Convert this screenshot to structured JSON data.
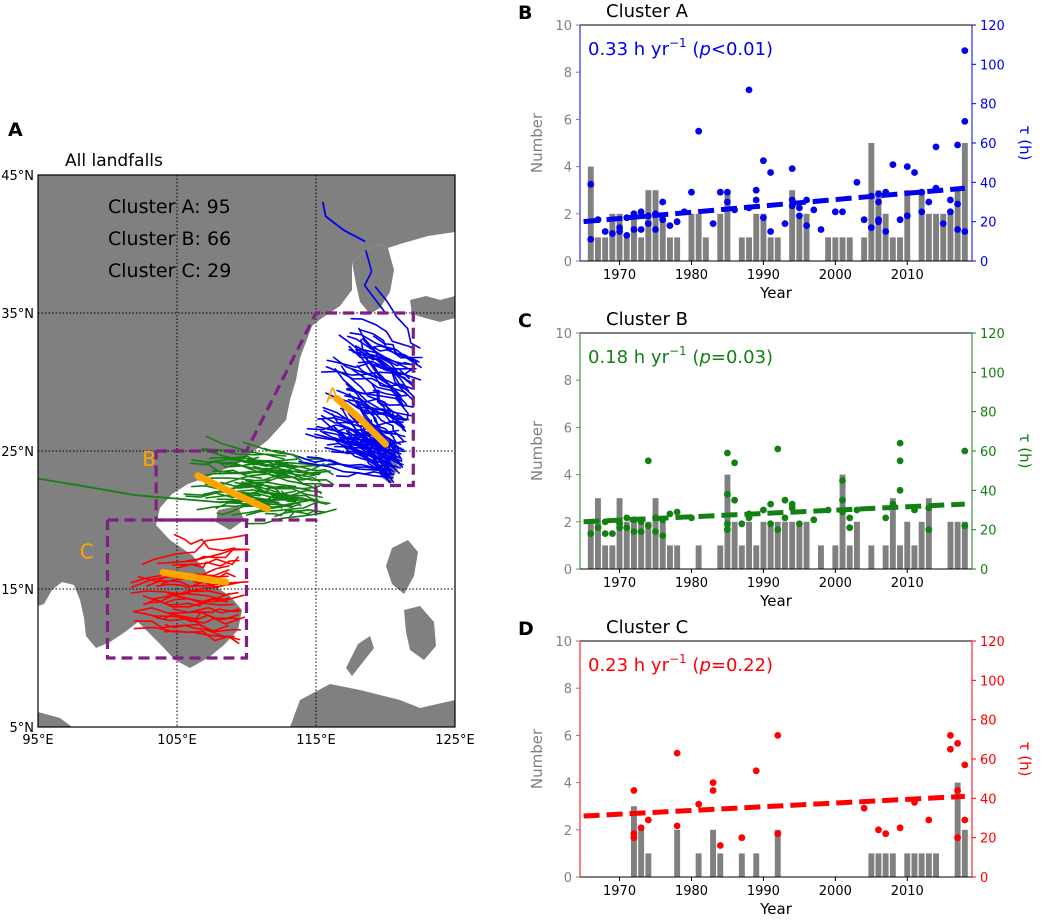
{
  "colors": {
    "cluster_a": "#0000ee",
    "cluster_b": "#138013",
    "cluster_c": "#ff0000",
    "bars": "#808080",
    "land": "#808080",
    "box": "#7f1f7f",
    "segment": "#ffa500",
    "left_axis": "#808080"
  },
  "chart_data": [
    {
      "type": "map",
      "panel": "A",
      "title": "All landfalls",
      "legend": [
        {
          "label": "Cluster A: 95",
          "color_key": "cluster_a"
        },
        {
          "label": "Cluster B: 66",
          "color_key": "cluster_b"
        },
        {
          "label": "Cluster C: 29",
          "color_key": "cluster_c"
        }
      ],
      "lon_range": [
        95,
        125
      ],
      "lat_range": [
        5,
        45
      ],
      "lon_ticks": [
        {
          "value": 95,
          "label": "95°E"
        },
        {
          "value": 105,
          "label": "105°E"
        },
        {
          "value": 115,
          "label": "115°E"
        },
        {
          "value": 125,
          "label": "125°E"
        }
      ],
      "lat_ticks": [
        {
          "value": 5,
          "label": "5°N"
        },
        {
          "value": 15,
          "label": "15°N"
        },
        {
          "value": 25,
          "label": "25°N"
        },
        {
          "value": 35,
          "label": "35°N"
        },
        {
          "value": 45,
          "label": "45°N"
        }
      ],
      "grid_lon": [
        105,
        115
      ],
      "grid_lat": [
        15,
        25,
        35
      ],
      "regions": [
        {
          "name": "A",
          "lonlat": [
            [
              103.5,
              25
            ],
            [
              110,
              25
            ],
            [
              115,
              35
            ],
            [
              122,
              35
            ],
            [
              122,
              22.5
            ],
            [
              115,
              22.5
            ],
            [
              115,
              20
            ],
            [
              103.5,
              20
            ],
            [
              103.5,
              25
            ]
          ]
        },
        {
          "name": "C",
          "lonlat": [
            [
              100,
              20
            ],
            [
              110,
              20
            ],
            [
              110,
              10
            ],
            [
              100,
              10
            ],
            [
              100,
              20
            ]
          ]
        }
      ],
      "mean_segments": [
        {
          "label": "A",
          "lonlat": [
            [
              116.5,
              28.8
            ],
            [
              118.2,
              27.3
            ],
            [
              120,
              25.5
            ]
          ],
          "label_at": [
            115.7,
            28.5
          ]
        },
        {
          "label": "B",
          "lonlat": [
            [
              106.5,
              23.2
            ],
            [
              108.5,
              22.2
            ],
            [
              111.5,
              20.8
            ]
          ],
          "label_at": [
            102.5,
            23.9
          ]
        },
        {
          "label": "C",
          "lonlat": [
            [
              104,
              16.2
            ],
            [
              106.5,
              15.8
            ],
            [
              108.5,
              15.5
            ]
          ],
          "label_at": [
            98,
            17.2
          ]
        }
      ]
    },
    {
      "type": "bar+scatter",
      "panel": "B",
      "title": "Cluster A",
      "trend_text": "0.33 h yr",
      "trend_sup": "−1",
      "p_label": "p",
      "p_text": "<0.01)",
      "color_key": "cluster_a",
      "xlabel": "Year",
      "ylabel_left": "Number",
      "ylabel_right": "τ (h)",
      "xlim": [
        1964.5,
        2019
      ],
      "x_ticks": [
        1970,
        1980,
        1990,
        2000,
        2010
      ],
      "ylim_left": [
        0,
        10
      ],
      "y_ticks_left": [
        0,
        2,
        4,
        6,
        8,
        10
      ],
      "ylim_right": [
        0,
        120
      ],
      "y_ticks_right": [
        0,
        20,
        40,
        60,
        80,
        100,
        120
      ],
      "bars": {
        "years": [
          1966,
          1967,
          1968,
          1969,
          1970,
          1971,
          1972,
          1973,
          1974,
          1975,
          1976,
          1977,
          1978,
          1980,
          1981,
          1982,
          1984,
          1985,
          1987,
          1988,
          1989,
          1990,
          1991,
          1992,
          1994,
          1995,
          1996,
          1999,
          2000,
          2001,
          2002,
          2004,
          2005,
          2006,
          2007,
          2008,
          2009,
          2010,
          2012,
          2013,
          2014,
          2015,
          2016,
          2017,
          2018
        ],
        "values": [
          4,
          1,
          1,
          2,
          2,
          1,
          2,
          1,
          3,
          3,
          2,
          1,
          1,
          2,
          2,
          1,
          2,
          3,
          1,
          1,
          2,
          2,
          1,
          1,
          3,
          2,
          2,
          1,
          1,
          1,
          1,
          1,
          5,
          3,
          2,
          1,
          1,
          3,
          3,
          2,
          2,
          2,
          2,
          3,
          5
        ]
      },
      "trend": {
        "x": [
          1965,
          2018
        ],
        "y": [
          20,
          37
        ]
      },
      "points": [
        [
          1966,
          39
        ],
        [
          1966,
          11
        ],
        [
          1967,
          21
        ],
        [
          1968,
          15
        ],
        [
          1969,
          14
        ],
        [
          1970,
          17
        ],
        [
          1970,
          15
        ],
        [
          1971,
          13
        ],
        [
          1971,
          22
        ],
        [
          1972,
          16
        ],
        [
          1972,
          24
        ],
        [
          1973,
          16
        ],
        [
          1973,
          25
        ],
        [
          1974,
          19
        ],
        [
          1974,
          23
        ],
        [
          1975,
          24
        ],
        [
          1975,
          16
        ],
        [
          1976,
          21
        ],
        [
          1976,
          30
        ],
        [
          1977,
          18
        ],
        [
          1978,
          20
        ],
        [
          1979,
          25
        ],
        [
          1980,
          35
        ],
        [
          1981,
          66
        ],
        [
          1983,
          19
        ],
        [
          1984,
          35
        ],
        [
          1985,
          35
        ],
        [
          1985,
          30
        ],
        [
          1986,
          26
        ],
        [
          1988,
          27
        ],
        [
          1988,
          87
        ],
        [
          1989,
          31
        ],
        [
          1989,
          36
        ],
        [
          1990,
          22
        ],
        [
          1990,
          51
        ],
        [
          1991,
          45
        ],
        [
          1991,
          15
        ],
        [
          1993,
          19
        ],
        [
          1994,
          28
        ],
        [
          1994,
          31
        ],
        [
          1994,
          47
        ],
        [
          1995,
          23
        ],
        [
          1995,
          27
        ],
        [
          1996,
          31
        ],
        [
          1996,
          18
        ],
        [
          1997,
          26
        ],
        [
          1998,
          16
        ],
        [
          2000,
          25
        ],
        [
          2001,
          25
        ],
        [
          2003,
          40
        ],
        [
          2004,
          21
        ],
        [
          2005,
          33
        ],
        [
          2005,
          17
        ],
        [
          2006,
          34
        ],
        [
          2006,
          30
        ],
        [
          2006,
          21
        ],
        [
          2006,
          20
        ],
        [
          2007,
          35
        ],
        [
          2007,
          15
        ],
        [
          2008,
          49
        ],
        [
          2009,
          21
        ],
        [
          2010,
          48
        ],
        [
          2010,
          23
        ],
        [
          2011,
          45
        ],
        [
          2012,
          35
        ],
        [
          2012,
          25
        ],
        [
          2013,
          30
        ],
        [
          2014,
          58
        ],
        [
          2014,
          37
        ],
        [
          2015,
          19
        ],
        [
          2016,
          25
        ],
        [
          2016,
          31
        ],
        [
          2017,
          59
        ],
        [
          2017,
          16
        ],
        [
          2017,
          29
        ],
        [
          2018,
          107
        ],
        [
          2018,
          71
        ],
        [
          2018,
          15
        ]
      ]
    },
    {
      "type": "bar+scatter",
      "panel": "C",
      "title": "Cluster B",
      "trend_text": "0.18 h yr",
      "trend_sup": "−1",
      "p_label": "p",
      "p_text": "=0.03)",
      "color_key": "cluster_b",
      "xlabel": "Year",
      "ylabel_left": "Number",
      "ylabel_right": "τ (h)",
      "xlim": [
        1964.5,
        2019
      ],
      "x_ticks": [
        1970,
        1980,
        1990,
        2000,
        2010
      ],
      "ylim_left": [
        0,
        10
      ],
      "y_ticks_left": [
        0,
        2,
        4,
        6,
        8,
        10
      ],
      "ylim_right": [
        0,
        120
      ],
      "y_ticks_right": [
        0,
        20,
        40,
        60,
        80,
        100,
        120
      ],
      "bars": {
        "years": [
          1966,
          1967,
          1968,
          1969,
          1970,
          1971,
          1972,
          1973,
          1974,
          1975,
          1976,
          1977,
          1978,
          1981,
          1984,
          1985,
          1986,
          1987,
          1988,
          1989,
          1990,
          1991,
          1992,
          1993,
          1994,
          1995,
          1996,
          1998,
          2000,
          2001,
          2002,
          2003,
          2005,
          2007,
          2008,
          2009,
          2010,
          2011,
          2012,
          2013,
          2016,
          2017,
          2018
        ],
        "values": [
          2,
          3,
          1,
          1,
          3,
          2,
          2,
          2,
          2,
          3,
          2,
          1,
          1,
          1,
          1,
          4,
          2,
          1,
          2,
          1,
          2,
          2,
          2,
          2,
          2,
          2,
          2,
          1,
          1,
          4,
          1,
          2,
          1,
          1,
          3,
          1,
          2,
          1,
          2,
          3,
          2,
          2,
          2
        ]
      },
      "trend": {
        "x": [
          1965,
          2018
        ],
        "y": [
          24,
          33
        ]
      },
      "points": [
        [
          1966,
          18
        ],
        [
          1967,
          21
        ],
        [
          1968,
          24
        ],
        [
          1968,
          18
        ],
        [
          1969,
          18
        ],
        [
          1970,
          23
        ],
        [
          1970,
          21
        ],
        [
          1971,
          26
        ],
        [
          1971,
          21
        ],
        [
          1972,
          25
        ],
        [
          1972,
          19
        ],
        [
          1973,
          24
        ],
        [
          1973,
          19
        ],
        [
          1974,
          55
        ],
        [
          1974,
          22
        ],
        [
          1975,
          26
        ],
        [
          1975,
          19
        ],
        [
          1976,
          17
        ],
        [
          1976,
          25
        ],
        [
          1977,
          28
        ],
        [
          1978,
          29
        ],
        [
          1980,
          26
        ],
        [
          1985,
          59
        ],
        [
          1985,
          38
        ],
        [
          1985,
          20
        ],
        [
          1985,
          23
        ],
        [
          1986,
          54
        ],
        [
          1986,
          35
        ],
        [
          1987,
          23
        ],
        [
          1988,
          26
        ],
        [
          1988,
          28
        ],
        [
          1990,
          30
        ],
        [
          1991,
          33
        ],
        [
          1991,
          23
        ],
        [
          1992,
          61
        ],
        [
          1992,
          20
        ],
        [
          1993,
          35
        ],
        [
          1993,
          26
        ],
        [
          1994,
          33
        ],
        [
          1994,
          31
        ],
        [
          1995,
          23
        ],
        [
          1997,
          25
        ],
        [
          1999,
          30
        ],
        [
          2001,
          45
        ],
        [
          2001,
          35
        ],
        [
          2001,
          29
        ],
        [
          2002,
          26
        ],
        [
          2002,
          21
        ],
        [
          2003,
          30
        ],
        [
          2007,
          26
        ],
        [
          2008,
          33
        ],
        [
          2009,
          55
        ],
        [
          2009,
          64
        ],
        [
          2009,
          40
        ],
        [
          2011,
          30
        ],
        [
          2013,
          31
        ],
        [
          2013,
          20
        ],
        [
          2018,
          60
        ],
        [
          2018,
          22
        ]
      ]
    },
    {
      "type": "bar+scatter",
      "panel": "D",
      "title": "Cluster C",
      "trend_text": "0.23 h yr",
      "trend_sup": "−1",
      "p_label": "p",
      "p_text": "=0.22)",
      "color_key": "cluster_c",
      "xlabel": "Year",
      "ylabel_left": "Number",
      "ylabel_right": "τ (h)",
      "xlim": [
        1964.5,
        2019
      ],
      "x_ticks": [
        1970,
        1980,
        1990,
        2000,
        2010
      ],
      "ylim_left": [
        0,
        10
      ],
      "y_ticks_left": [
        0,
        2,
        4,
        6,
        8,
        10
      ],
      "ylim_right": [
        0,
        120
      ],
      "y_ticks_right": [
        0,
        20,
        40,
        60,
        80,
        100,
        120
      ],
      "bars": {
        "years": [
          1972,
          1973,
          1974,
          1978,
          1981,
          1983,
          1984,
          1987,
          1989,
          1992,
          2005,
          2006,
          2007,
          2008,
          2010,
          2011,
          2012,
          2013,
          2014,
          2017,
          2018
        ],
        "values": [
          3,
          2,
          1,
          2,
          1,
          2,
          1,
          1,
          1,
          2,
          1,
          1,
          1,
          1,
          1,
          1,
          1,
          1,
          1,
          4,
          2
        ]
      },
      "trend": {
        "x": [
          1965,
          2018
        ],
        "y": [
          31,
          41
        ]
      },
      "points": [
        [
          1972,
          44
        ],
        [
          1972,
          22
        ],
        [
          1972,
          20
        ],
        [
          1973,
          25
        ],
        [
          1974,
          29
        ],
        [
          1978,
          63
        ],
        [
          1978,
          26
        ],
        [
          1981,
          37
        ],
        [
          1983,
          48
        ],
        [
          1983,
          44
        ],
        [
          1984,
          16
        ],
        [
          1987,
          20
        ],
        [
          1989,
          54
        ],
        [
          1992,
          72
        ],
        [
          1992,
          22
        ],
        [
          2004,
          35
        ],
        [
          2006,
          24
        ],
        [
          2007,
          22
        ],
        [
          2009,
          25
        ],
        [
          2011,
          38
        ],
        [
          2013,
          29
        ],
        [
          2016,
          72
        ],
        [
          2016,
          65
        ],
        [
          2017,
          68
        ],
        [
          2017,
          20
        ],
        [
          2017,
          44
        ],
        [
          2018,
          57
        ],
        [
          2018,
          29
        ]
      ]
    }
  ]
}
